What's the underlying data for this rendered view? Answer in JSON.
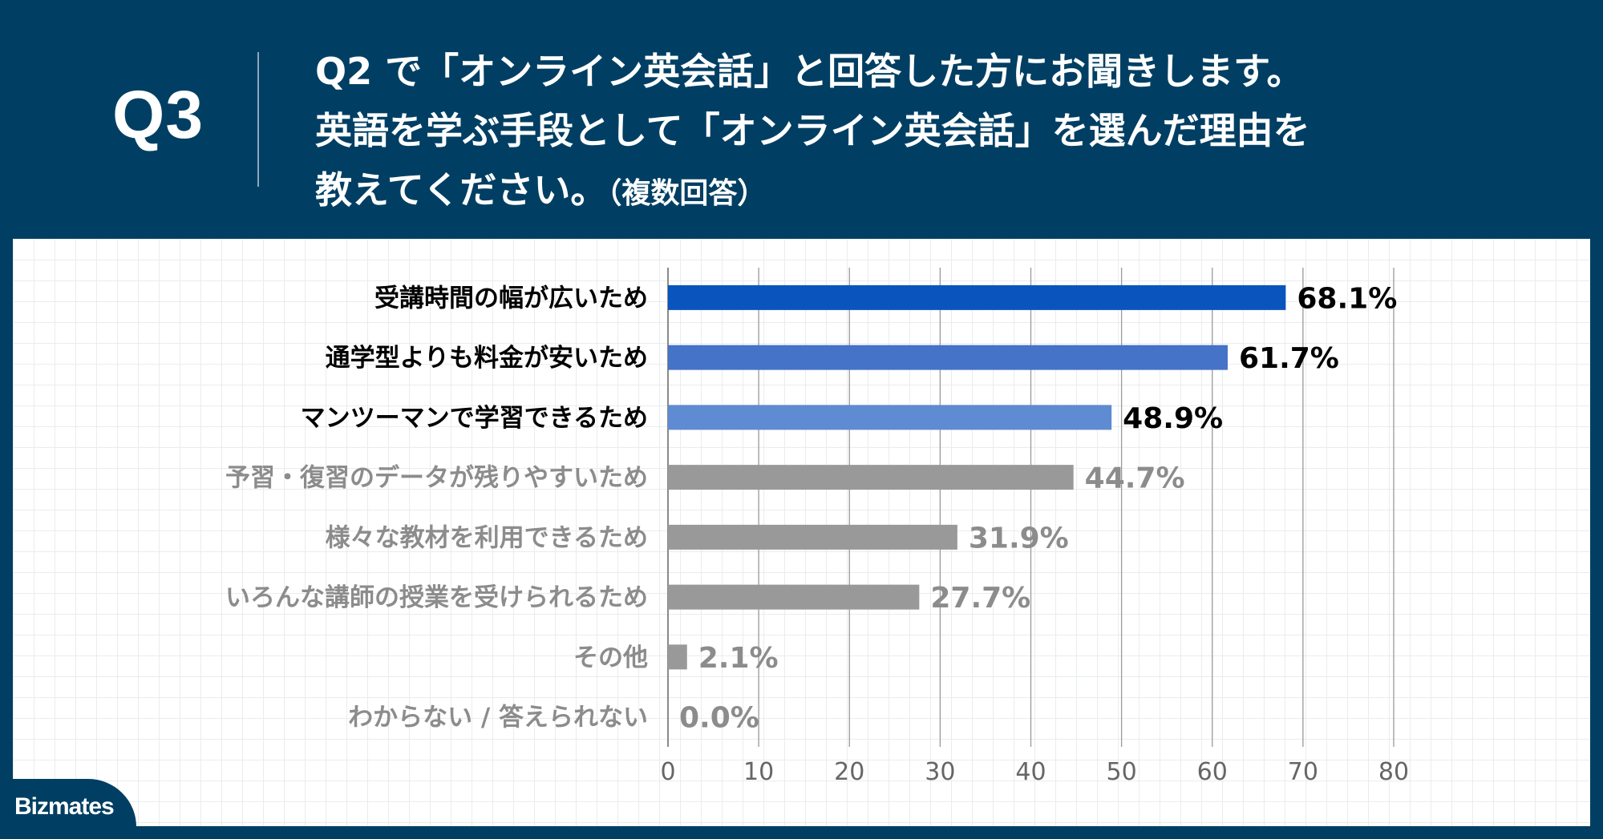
{
  "question": {
    "label": "Q3",
    "lines": [
      "Q2 で「オンライン英会話」と回答した方にお聞きします。",
      "英語を学ぶ手段として「オンライン英会話」を選んだ理由を",
      "教えてください。"
    ],
    "note": "（複数回答）"
  },
  "logo": "Bizmates",
  "chart_data": {
    "type": "bar",
    "orientation": "horizontal",
    "categories": [
      "受講時間の幅が広いため",
      "通学型よりも料金が安いため",
      "マンツーマンで学習できるため",
      "予習・復習のデータが残りやすいため",
      "様々な教材を利用できるため",
      "いろんな講師の授業を受けられるため",
      "その他",
      "わからない / 答えられない"
    ],
    "values": [
      68.1,
      61.7,
      48.9,
      44.7,
      31.9,
      27.7,
      2.1,
      0.0
    ],
    "value_labels": [
      "68.1%",
      "61.7%",
      "48.9%",
      "44.7%",
      "31.9%",
      "27.7%",
      "2.1%",
      "0.0%"
    ],
    "bar_colors": [
      "#0A55BD",
      "#4573C7",
      "#5E8BD1",
      "#999999",
      "#999999",
      "#999999",
      "#999999",
      "#999999"
    ],
    "label_colors": [
      "#000000",
      "#000000",
      "#000000",
      "#8C8C8C",
      "#8C8C8C",
      "#8C8C8C",
      "#8C8C8C",
      "#8C8C8C"
    ],
    "xlim": [
      0,
      80
    ],
    "xticks": [
      "0",
      "10",
      "20",
      "30",
      "40",
      "50",
      "60",
      "70",
      "80"
    ],
    "grid": true
  }
}
